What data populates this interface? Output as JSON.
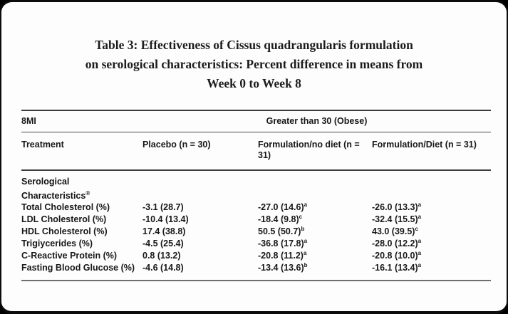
{
  "title": {
    "lines": [
      "Table 3: Effectiveness of Cissus quadrangularis formulation",
      "on serological characteristics: Percent difference in means from",
      "Week 0 to Week 8"
    ]
  },
  "table": {
    "bmi_label": "8MI",
    "bmi_group": "Greater than 30 (Obese)",
    "columns": [
      "Treatment",
      "Placebo (n = 30)",
      "Formulation/no diet (n = 31)",
      "Formulation/Diet (n = 31)"
    ],
    "section": {
      "label": "Serological Characteristics",
      "marker": "®"
    },
    "rows": [
      {
        "label": "Total Cholesterol (%)",
        "placebo": "-3.1 (28.7)",
        "fnd": "-27.0 (14.6)",
        "fnd_sup": "a",
        "fd": "-26.0 (13.3)",
        "fd_sup": "a"
      },
      {
        "label": "LDL Cholesterol (%)",
        "placebo": "-10.4 (13.4)",
        "fnd": "-18.4 (9.8)",
        "fnd_sup": "c",
        "fd": "-32.4 (15.5)",
        "fd_sup": "a"
      },
      {
        "label": "HDL Cholesterol (%)",
        "placebo": "17.4 (38.8)",
        "fnd": "50.5 (50.7)",
        "fnd_sup": "b",
        "fd": "43.0 (39.5)",
        "fd_sup": "c"
      },
      {
        "label": "Trigiycerides (%)",
        "placebo": "-4.5 (25.4)",
        "fnd": "-36.8 (17.8)",
        "fnd_sup": "a",
        "fd": "-28.0 (12.2)",
        "fd_sup": "a"
      },
      {
        "label": "C-Reactive Protein (%)",
        "placebo": "0.8 (13.2)",
        "fnd": "-20.8 (11.2)",
        "fnd_sup": "a",
        "fd": "-20.8 (10.0)",
        "fd_sup": "a"
      },
      {
        "label": "Fasting Blood Glucose (%)",
        "placebo": "-4.6 (14.8)",
        "fnd": "-13.4 (13.6)",
        "fnd_sup": "b",
        "fd": "-16.1 (13.4)",
        "fd_sup": "a"
      }
    ],
    "rules_color_dark": "#3c3c3c",
    "rules_color_bottom": "#6e6e6e"
  }
}
